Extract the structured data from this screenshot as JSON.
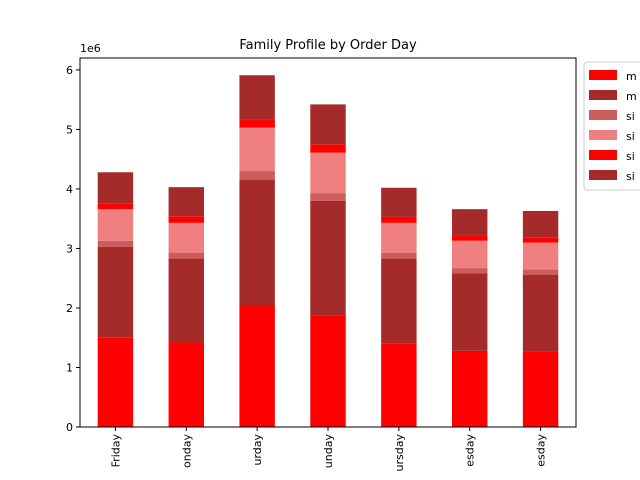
{
  "chart_data": {
    "type": "bar",
    "stacked": true,
    "title": "Family Profile by Order Day",
    "xlabel": "",
    "ylabel": "",
    "y_offset_label": "1e6",
    "ylim": [
      0,
      6.2
    ],
    "yticks": [
      0,
      1,
      2,
      3,
      4,
      5,
      6
    ],
    "categories": [
      "Friday",
      "onday",
      "urday",
      "unday",
      "ursday",
      "esday",
      "esday"
    ],
    "series": [
      {
        "name": "m",
        "color": "#ff0000",
        "values": [
          1.5,
          1.42,
          2.05,
          1.88,
          1.4,
          1.28,
          1.27
        ]
      },
      {
        "name": "m",
        "color": "#a52a2a",
        "values": [
          1.53,
          1.41,
          2.1,
          1.92,
          1.43,
          1.3,
          1.29
        ]
      },
      {
        "name": "si",
        "color": "#cd5c5c",
        "values": [
          0.1,
          0.1,
          0.15,
          0.13,
          0.1,
          0.09,
          0.09
        ]
      },
      {
        "name": "si",
        "color": "#f08080",
        "values": [
          0.53,
          0.5,
          0.73,
          0.68,
          0.5,
          0.46,
          0.45
        ]
      },
      {
        "name": "si",
        "color": "#ff0000",
        "values": [
          0.1,
          0.11,
          0.13,
          0.14,
          0.1,
          0.08,
          0.08
        ]
      },
      {
        "name": "si",
        "color": "#a52a2a",
        "values": [
          0.52,
          0.49,
          0.75,
          0.67,
          0.49,
          0.45,
          0.45
        ]
      }
    ],
    "legend_position": "outside-top-right",
    "grid": false
  }
}
